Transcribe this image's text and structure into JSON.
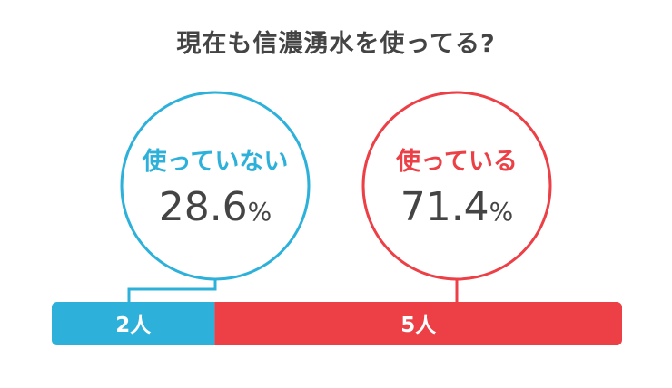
{
  "title": "現在も信濃湧水を使ってる?",
  "colors": {
    "not_using": "#2DB1DA",
    "using": "#EC3F46",
    "text": "#444444",
    "bar_text": "#ffffff"
  },
  "chart_data": {
    "type": "bar",
    "orientation": "horizontal-stacked",
    "title": "現在も信濃湧水を使ってる?",
    "unit": "人",
    "categories": [
      "使っていない",
      "使っている"
    ],
    "values": [
      2,
      5
    ],
    "value_labels": [
      "2人",
      "5人"
    ],
    "percent_labels": [
      "28.6",
      "71.4"
    ],
    "percent_symbol": "%"
  }
}
